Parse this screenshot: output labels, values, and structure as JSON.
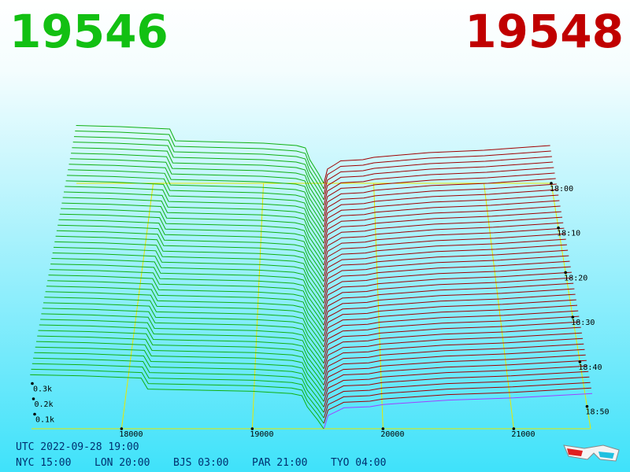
{
  "header": {
    "bid_price": "19546",
    "ask_price": "19548"
  },
  "chart_data": {
    "type": "depth3d",
    "bids": {
      "color": "#10b010",
      "prices": [
        19546,
        19500,
        19420,
        19380,
        19300,
        19000,
        18200,
        18150,
        17700,
        17300
      ],
      "depths": [
        0,
        40,
        100,
        150,
        160,
        170,
        180,
        230,
        240,
        245
      ]
    },
    "asks": {
      "color": "#a00000",
      "prices": [
        19548,
        19580,
        19650,
        19700,
        19900,
        20000,
        20500,
        21000,
        21600
      ],
      "depths": [
        0,
        60,
        80,
        95,
        100,
        110,
        130,
        140,
        160
      ]
    },
    "xticks": [
      18000,
      19000,
      20000,
      21000
    ],
    "zticks": [
      {
        "value": 100,
        "label": "0.1k"
      },
      {
        "value": 200,
        "label": "0.2k"
      },
      {
        "value": 300,
        "label": "0.3k"
      }
    ],
    "times": [
      "18:00",
      "18:10",
      "18:20",
      "18:30",
      "18:40",
      "18:50"
    ]
  },
  "footer": {
    "utc": "UTC 2022-09-28 19:00",
    "zones": [
      "NYC 15:00",
      "LON 20:00",
      "BJS 03:00",
      "PAR 21:00",
      "TYO 04:00"
    ]
  }
}
